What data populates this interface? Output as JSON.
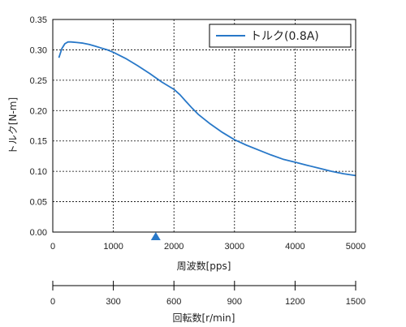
{
  "chart_data": {
    "type": "line",
    "ylabel": "トルク[N-m]",
    "xlabel": "周波数[pps]",
    "xlabel2": "回転数[r/min]",
    "xlim": [
      0,
      5000
    ],
    "ylim": [
      0,
      0.35
    ],
    "grid": true,
    "legend_position": "top-right",
    "x_ticks": [
      "0",
      "1000",
      "2000",
      "3000",
      "4000",
      "5000"
    ],
    "y_ticks": [
      "0.00",
      "0.05",
      "0.10",
      "0.15",
      "0.20",
      "0.25",
      "0.30",
      "0.35"
    ],
    "x2_ticks": [
      "0",
      "300",
      "600",
      "900",
      "1200",
      "1500"
    ],
    "marker_x": 1700,
    "series": [
      {
        "name": "トルク(0.8A)",
        "color": "#2878c8",
        "x": [
          100,
          150,
          200,
          250,
          300,
          400,
          500,
          600,
          700,
          800,
          900,
          1000,
          1200,
          1400,
          1600,
          1800,
          2000,
          2100,
          2200,
          2300,
          2400,
          2600,
          2800,
          3000,
          3200,
          3400,
          3600,
          3800,
          4000,
          4200,
          4400,
          4600,
          4800,
          5000
        ],
        "y": [
          0.287,
          0.302,
          0.31,
          0.313,
          0.313,
          0.312,
          0.311,
          0.309,
          0.306,
          0.303,
          0.3,
          0.296,
          0.286,
          0.274,
          0.261,
          0.247,
          0.235,
          0.226,
          0.215,
          0.204,
          0.194,
          0.178,
          0.164,
          0.152,
          0.143,
          0.135,
          0.127,
          0.12,
          0.115,
          0.11,
          0.105,
          0.1,
          0.096,
          0.093
        ]
      }
    ]
  }
}
